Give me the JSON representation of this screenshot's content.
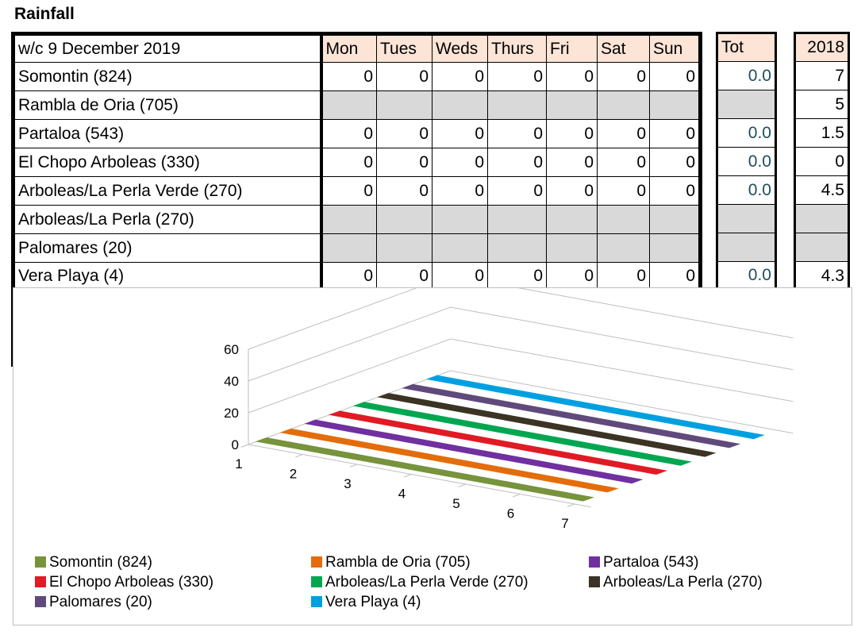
{
  "title": "Rainfall",
  "table": {
    "header_label": "w/c 9 December 2019",
    "days": [
      "Mon",
      "Tues",
      "Weds",
      "Thurs",
      "Fri",
      "Sat",
      "Sun"
    ],
    "tot_header": "Tot",
    "prev_year_header": "2018",
    "rows": [
      {
        "name": "Somontin (824)",
        "days": [
          "0",
          "0",
          "0",
          "0",
          "0",
          "0",
          "0"
        ],
        "tot": "0.0",
        "prev": "7"
      },
      {
        "name": "Rambla de Oria (705)",
        "days": [
          "",
          "",
          "",
          "",
          "",
          "",
          ""
        ],
        "tot": "",
        "prev": "5"
      },
      {
        "name": "Partaloa (543)",
        "days": [
          "0",
          "0",
          "0",
          "0",
          "0",
          "0",
          "0"
        ],
        "tot": "0.0",
        "prev": "1.5"
      },
      {
        "name": "El Chopo Arboleas (330)",
        "days": [
          "0",
          "0",
          "0",
          "0",
          "0",
          "0",
          "0"
        ],
        "tot": "0.0",
        "prev": "0"
      },
      {
        "name": "Arboleas/La Perla Verde (270)",
        "days": [
          "0",
          "0",
          "0",
          "0",
          "0",
          "0",
          "0"
        ],
        "tot": "0.0",
        "prev": "4.5"
      },
      {
        "name": "Arboleas/La Perla (270)",
        "days": [
          "",
          "",
          "",
          "",
          "",
          "",
          ""
        ],
        "tot": "",
        "prev": ""
      },
      {
        "name": "Palomares (20)",
        "days": [
          "",
          "",
          "",
          "",
          "",
          "",
          ""
        ],
        "tot": "",
        "prev": ""
      },
      {
        "name": "Vera Playa (4)",
        "days": [
          "0",
          "0",
          "0",
          "0",
          "0",
          "0",
          "0"
        ],
        "tot": "0.0",
        "prev": "4.3"
      }
    ]
  },
  "chart_data": {
    "type": "area",
    "three_d": true,
    "title": "",
    "x": [
      1,
      2,
      3,
      4,
      5,
      6,
      7
    ],
    "ylim": [
      0,
      60
    ],
    "yticks": [
      0,
      20,
      40,
      60
    ],
    "grid": true,
    "legend_position": "bottom",
    "series": [
      {
        "name": "Somontin (824)",
        "values": [
          0,
          0,
          0,
          0,
          0,
          0,
          0
        ],
        "color": "#77933c"
      },
      {
        "name": "Rambla de Oria (705)",
        "values": [
          0,
          0,
          0,
          0,
          0,
          0,
          0
        ],
        "color": "#e46c0a"
      },
      {
        "name": "Partaloa (543)",
        "values": [
          0,
          0,
          0,
          0,
          0,
          0,
          0
        ],
        "color": "#7030a0"
      },
      {
        "name": "El Chopo Arboleas (330)",
        "values": [
          0,
          0,
          0,
          0,
          0,
          0,
          0
        ],
        "color": "#e01b24"
      },
      {
        "name": "Arboleas/La Perla Verde (270)",
        "values": [
          0,
          0,
          0,
          0,
          0,
          0,
          0
        ],
        "color": "#00a650"
      },
      {
        "name": "Arboleas/La Perla (270)",
        "values": [
          0,
          0,
          0,
          0,
          0,
          0,
          0
        ],
        "color": "#3b3324"
      },
      {
        "name": "Palomares (20)",
        "values": [
          0,
          0,
          0,
          0,
          0,
          0,
          0
        ],
        "color": "#604a7b"
      },
      {
        "name": "Vera Playa (4)",
        "values": [
          0,
          0,
          0,
          0,
          0,
          0,
          0
        ],
        "color": "#00a0e0"
      }
    ]
  }
}
